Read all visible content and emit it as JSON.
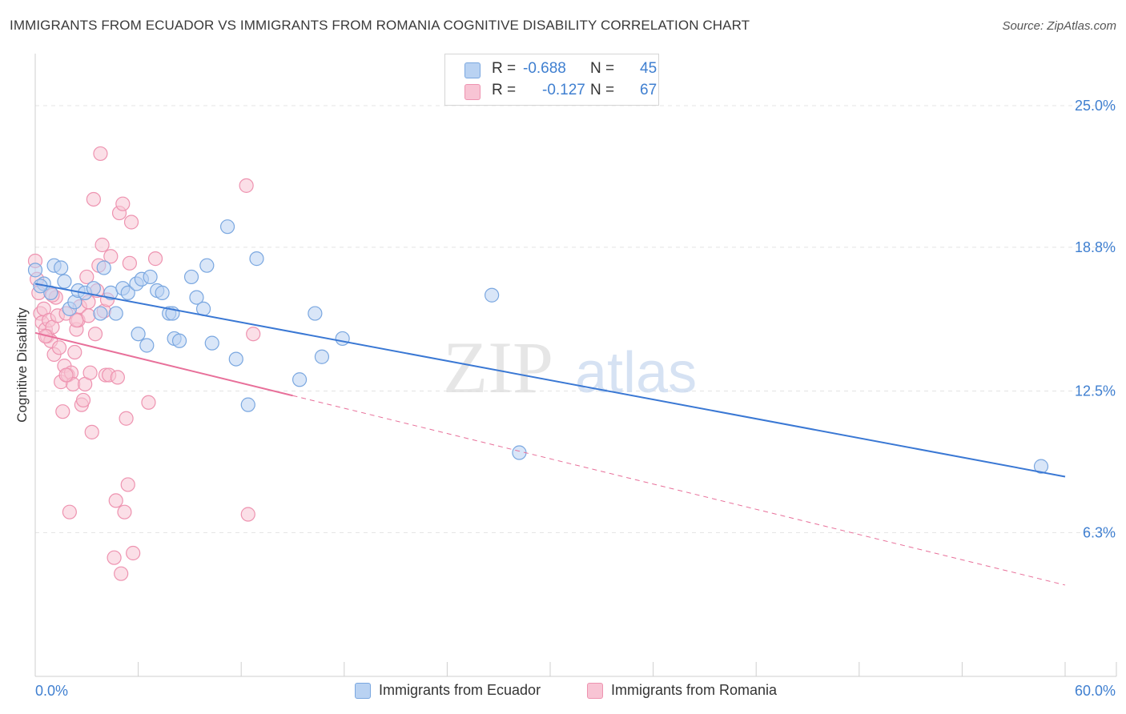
{
  "header": {
    "title": "IMMIGRANTS FROM ECUADOR VS IMMIGRANTS FROM ROMANIA COGNITIVE DISABILITY CORRELATION CHART",
    "source": "Source: ZipAtlas.com"
  },
  "legend": {
    "ecuador": {
      "r_label": "R =",
      "r_value": "-0.688",
      "n_label": "N =",
      "n_value": "45"
    },
    "romania": {
      "r_label": "R =",
      "r_value": "-0.127",
      "n_label": "N =",
      "n_value": "67"
    }
  },
  "colors": {
    "ecuador_fill": "#b9d2f2",
    "ecuador_stroke": "#7aa7e0",
    "ecuador_line": "#3a78d4",
    "romania_fill": "#f8c4d4",
    "romania_stroke": "#ee93b0",
    "romania_line": "#e8709a",
    "tick_text": "#3f7fd0",
    "grid": "#e4e4e4"
  },
  "watermark": {
    "part1": "ZIP",
    "part2": "atlas"
  },
  "chart_data": {
    "type": "scatter",
    "title": "IMMIGRANTS FROM ECUADOR VS IMMIGRANTS FROM ROMANIA COGNITIVE DISABILITY CORRELATION CHART",
    "xlabel": "",
    "ylabel": "Cognitive Disability",
    "xlim": [
      0,
      60
    ],
    "ylim": [
      0,
      27
    ],
    "x_tick_labels": [
      "0.0%",
      "60.0%"
    ],
    "y_ticks": [
      6.3,
      12.5,
      18.8,
      25.0
    ],
    "y_tick_labels": [
      "6.3%",
      "12.5%",
      "18.8%",
      "25.0%"
    ],
    "grid": true,
    "legend_position": "top-center",
    "series": [
      {
        "name": "Immigrants from Ecuador",
        "points": [
          [
            0.0,
            17.8
          ],
          [
            0.5,
            17.2
          ],
          [
            0.9,
            16.8
          ],
          [
            1.1,
            18.0
          ],
          [
            1.5,
            17.9
          ],
          [
            1.7,
            17.3
          ],
          [
            2.0,
            16.1
          ],
          [
            2.3,
            16.4
          ],
          [
            2.5,
            16.9
          ],
          [
            2.9,
            16.8
          ],
          [
            3.4,
            17.0
          ],
          [
            3.8,
            15.9
          ],
          [
            4.0,
            17.9
          ],
          [
            4.4,
            16.8
          ],
          [
            4.7,
            15.9
          ],
          [
            5.1,
            17.0
          ],
          [
            5.4,
            16.8
          ],
          [
            5.9,
            17.2
          ],
          [
            6.0,
            15.0
          ],
          [
            6.2,
            17.4
          ],
          [
            6.5,
            14.5
          ],
          [
            6.7,
            17.5
          ],
          [
            7.1,
            16.9
          ],
          [
            7.4,
            16.8
          ],
          [
            7.8,
            15.9
          ],
          [
            8.0,
            15.9
          ],
          [
            8.1,
            14.8
          ],
          [
            8.4,
            14.7
          ],
          [
            9.1,
            17.5
          ],
          [
            9.4,
            16.6
          ],
          [
            9.8,
            16.1
          ],
          [
            10.0,
            18.0
          ],
          [
            10.3,
            14.6
          ],
          [
            11.2,
            19.7
          ],
          [
            11.7,
            13.9
          ],
          [
            12.4,
            11.9
          ],
          [
            12.9,
            18.3
          ],
          [
            15.4,
            13.0
          ],
          [
            16.3,
            15.9
          ],
          [
            16.7,
            14.0
          ],
          [
            17.9,
            14.8
          ],
          [
            26.6,
            16.7
          ],
          [
            28.2,
            9.8
          ],
          [
            58.6,
            9.2
          ],
          [
            0.3,
            17.1
          ]
        ]
      },
      {
        "name": "Immigrants from Romania",
        "points": [
          [
            0.0,
            18.2
          ],
          [
            0.1,
            17.4
          ],
          [
            0.2,
            16.8
          ],
          [
            0.3,
            15.9
          ],
          [
            0.4,
            15.5
          ],
          [
            0.5,
            16.1
          ],
          [
            0.6,
            15.2
          ],
          [
            0.7,
            14.9
          ],
          [
            0.8,
            15.6
          ],
          [
            0.9,
            14.7
          ],
          [
            1.0,
            15.3
          ],
          [
            1.1,
            14.1
          ],
          [
            1.2,
            16.6
          ],
          [
            1.3,
            15.8
          ],
          [
            1.4,
            14.4
          ],
          [
            1.5,
            12.9
          ],
          [
            1.6,
            11.6
          ],
          [
            1.7,
            13.6
          ],
          [
            1.8,
            15.9
          ],
          [
            1.9,
            13.2
          ],
          [
            2.0,
            7.2
          ],
          [
            2.1,
            13.3
          ],
          [
            2.2,
            12.8
          ],
          [
            2.3,
            14.2
          ],
          [
            2.4,
            15.2
          ],
          [
            2.5,
            15.6
          ],
          [
            2.6,
            16.2
          ],
          [
            2.7,
            11.9
          ],
          [
            2.8,
            12.1
          ],
          [
            2.9,
            12.8
          ],
          [
            3.0,
            17.5
          ],
          [
            3.1,
            15.8
          ],
          [
            3.2,
            13.3
          ],
          [
            3.3,
            10.7
          ],
          [
            3.4,
            20.9
          ],
          [
            3.5,
            15.0
          ],
          [
            3.6,
            16.9
          ],
          [
            3.7,
            18.0
          ],
          [
            3.8,
            22.9
          ],
          [
            3.9,
            18.9
          ],
          [
            4.0,
            16.0
          ],
          [
            4.1,
            13.2
          ],
          [
            4.2,
            16.5
          ],
          [
            4.3,
            13.2
          ],
          [
            4.4,
            18.4
          ],
          [
            4.6,
            5.2
          ],
          [
            4.7,
            7.7
          ],
          [
            4.8,
            13.1
          ],
          [
            4.9,
            20.3
          ],
          [
            5.0,
            4.5
          ],
          [
            5.1,
            20.7
          ],
          [
            5.2,
            7.2
          ],
          [
            5.3,
            11.3
          ],
          [
            5.4,
            8.4
          ],
          [
            5.5,
            18.1
          ],
          [
            5.6,
            19.9
          ],
          [
            5.7,
            5.4
          ],
          [
            6.6,
            12.0
          ],
          [
            7.0,
            18.3
          ],
          [
            12.3,
            21.5
          ],
          [
            12.4,
            7.1
          ],
          [
            12.7,
            15.0
          ],
          [
            0.6,
            14.9
          ],
          [
            1.0,
            16.7
          ],
          [
            1.8,
            13.2
          ],
          [
            2.4,
            15.6
          ],
          [
            3.1,
            16.4
          ]
        ]
      }
    ],
    "trend_lines": [
      {
        "series": "Immigrants from Ecuador",
        "x_start": 0.0,
        "y_start": 17.2,
        "x_end": 60.0,
        "y_end": 8.75,
        "style": "solid"
      },
      {
        "series": "Immigrants from Romania",
        "x_start": 0.0,
        "y_start": 15.05,
        "x_end": 15.0,
        "y_end": 12.3,
        "style": "solid"
      },
      {
        "series": "Immigrants from Romania",
        "x_start": 15.0,
        "y_start": 12.3,
        "x_end": 60.0,
        "y_end": 4.0,
        "style": "dashed"
      }
    ]
  }
}
